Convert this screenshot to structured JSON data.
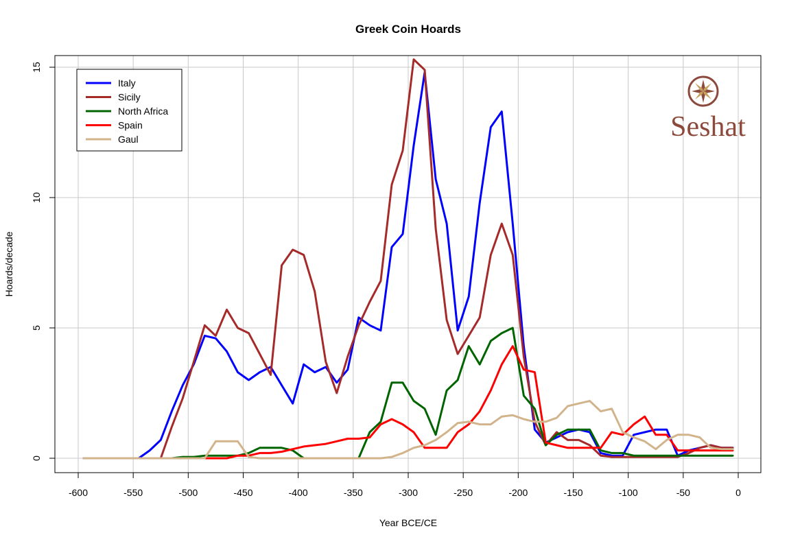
{
  "chart_data": {
    "type": "line",
    "title": "Greek Coin Hoards",
    "xlabel": "Year BCE/CE",
    "ylabel": "Hoards/decade",
    "xlim": [
      -600,
      0
    ],
    "ylim": [
      0,
      15
    ],
    "grid": true,
    "legend_position": "top-left",
    "x_ticks": [
      "-600",
      "-550",
      "-500",
      "-450",
      "-400",
      "-350",
      "-300",
      "-250",
      "-200",
      "-150",
      "-100",
      "-50",
      "0"
    ],
    "x_tick_values": [
      -600,
      -550,
      -500,
      -450,
      -400,
      -350,
      -300,
      -250,
      -200,
      -150,
      -100,
      -50,
      0
    ],
    "y_ticks": [
      "0",
      "5",
      "10",
      "15"
    ],
    "y_tick_values": [
      0,
      5,
      10,
      15
    ],
    "series": [
      {
        "name": "Italy",
        "color": "#0000ff",
        "x": [
          -595,
          -585,
          -575,
          -565,
          -555,
          -545,
          -535,
          -525,
          -515,
          -505,
          -495,
          -485,
          -475,
          -465,
          -455,
          -445,
          -435,
          -425,
          -415,
          -405,
          -395,
          -385,
          -375,
          -365,
          -355,
          -345,
          -335,
          -325,
          -315,
          -305,
          -295,
          -285,
          -275,
          -265,
          -255,
          -245,
          -235,
          -225,
          -215,
          -205,
          -195,
          -185,
          -175,
          -165,
          -155,
          -145,
          -135,
          -125,
          -115,
          -105,
          -95,
          -85,
          -75,
          -65,
          -55,
          -45,
          -35,
          -25,
          -15,
          -5
        ],
        "y": [
          0,
          0,
          0,
          0,
          0,
          0,
          0.3,
          0.7,
          1.8,
          2.8,
          3.6,
          4.7,
          4.6,
          4.1,
          3.3,
          3.0,
          3.3,
          3.5,
          2.8,
          2.1,
          3.6,
          3.3,
          3.5,
          2.9,
          3.4,
          5.4,
          5.1,
          4.9,
          8.1,
          8.6,
          12.0,
          14.8,
          10.7,
          9.0,
          4.9,
          6.2,
          9.8,
          12.7,
          13.3,
          9.0,
          4.3,
          1.1,
          0.6,
          0.8,
          1.0,
          1.1,
          1.0,
          0.2,
          0.1,
          0.1,
          0.9,
          1.0,
          1.1,
          1.1,
          0.1,
          0.3,
          0.4,
          0.5,
          0.4,
          0.4
        ]
      },
      {
        "name": "Sicily",
        "color": "#a52a2a",
        "x": [
          -525,
          -515,
          -505,
          -495,
          -485,
          -475,
          -465,
          -455,
          -445,
          -435,
          -425,
          -415,
          -405,
          -395,
          -385,
          -375,
          -365,
          -355,
          -345,
          -335,
          -325,
          -315,
          -305,
          -295,
          -285,
          -275,
          -265,
          -255,
          -245,
          -235,
          -225,
          -215,
          -205,
          -195,
          -185,
          -175,
          -165,
          -155,
          -145,
          -135,
          -125,
          -115,
          -105,
          -95,
          -85,
          -75,
          -65,
          -55,
          -45,
          -35,
          -25,
          -15,
          -5
        ],
        "y": [
          0,
          1.2,
          2.3,
          3.7,
          5.1,
          4.7,
          5.7,
          5.0,
          4.8,
          4.0,
          3.2,
          7.4,
          8.0,
          7.8,
          6.4,
          3.7,
          2.5,
          3.9,
          5.1,
          6.0,
          6.8,
          10.5,
          11.8,
          15.3,
          14.9,
          8.8,
          5.3,
          4.0,
          4.7,
          5.4,
          7.8,
          9.0,
          7.8,
          3.9,
          1.4,
          0.5,
          1.0,
          0.7,
          0.7,
          0.5,
          0.1,
          0.05,
          0.05,
          0.05,
          0.05,
          0.05,
          0.05,
          0.05,
          0.2,
          0.4,
          0.5,
          0.4,
          0.4
        ]
      },
      {
        "name": "North Africa",
        "color": "#006400",
        "x": [
          -515,
          -505,
          -495,
          -485,
          -475,
          -465,
          -455,
          -445,
          -435,
          -425,
          -415,
          -405,
          -395,
          -385,
          -375,
          -365,
          -355,
          -345,
          -335,
          -325,
          -315,
          -305,
          -295,
          -285,
          -275,
          -265,
          -255,
          -245,
          -235,
          -225,
          -215,
          -205,
          -195,
          -185,
          -175,
          -165,
          -155,
          -145,
          -135,
          -125,
          -115,
          -105,
          -95,
          -85,
          -75,
          -65,
          -55,
          -45,
          -35,
          -25,
          -15,
          -5
        ],
        "y": [
          0,
          0.05,
          0.05,
          0.1,
          0.1,
          0.1,
          0.1,
          0.2,
          0.4,
          0.4,
          0.4,
          0.3,
          0,
          0,
          0,
          0,
          0,
          0,
          1.0,
          1.4,
          2.9,
          2.9,
          2.2,
          1.9,
          0.9,
          2.6,
          3.0,
          4.3,
          3.6,
          4.5,
          4.8,
          5.0,
          2.4,
          1.9,
          0.5,
          0.9,
          1.1,
          1.1,
          1.1,
          0.3,
          0.2,
          0.2,
          0.1,
          0.1,
          0.1,
          0.1,
          0.1,
          0.1,
          0.1,
          0.1,
          0.1,
          0.1
        ]
      },
      {
        "name": "Spain",
        "color": "#ff0000",
        "x": [
          -495,
          -485,
          -475,
          -465,
          -455,
          -445,
          -435,
          -425,
          -415,
          -405,
          -395,
          -385,
          -375,
          -365,
          -355,
          -345,
          -335,
          -325,
          -315,
          -305,
          -295,
          -285,
          -275,
          -265,
          -255,
          -245,
          -235,
          -225,
          -215,
          -205,
          -195,
          -185,
          -175,
          -165,
          -155,
          -145,
          -135,
          -125,
          -115,
          -105,
          -95,
          -85,
          -75,
          -65,
          -55,
          -45,
          -35,
          -25,
          -15,
          -5
        ],
        "y": [
          0,
          0,
          0,
          0,
          0.1,
          0.1,
          0.2,
          0.2,
          0.25,
          0.35,
          0.45,
          0.5,
          0.55,
          0.65,
          0.75,
          0.75,
          0.8,
          1.3,
          1.5,
          1.3,
          1.0,
          0.4,
          0.4,
          0.4,
          1.0,
          1.3,
          1.8,
          2.6,
          3.6,
          4.3,
          3.4,
          3.3,
          0.6,
          0.5,
          0.4,
          0.4,
          0.4,
          0.4,
          1.0,
          0.9,
          1.3,
          1.6,
          0.9,
          0.9,
          0.3,
          0.3,
          0.3,
          0.3,
          0.3,
          0.3
        ]
      },
      {
        "name": "Gaul",
        "color": "#d2b48c",
        "x": [
          -595,
          -585,
          -575,
          -565,
          -555,
          -545,
          -535,
          -525,
          -515,
          -505,
          -495,
          -485,
          -475,
          -465,
          -455,
          -445,
          -435,
          -425,
          -415,
          -405,
          -395,
          -385,
          -375,
          -365,
          -355,
          -345,
          -335,
          -325,
          -315,
          -305,
          -295,
          -285,
          -275,
          -265,
          -255,
          -245,
          -235,
          -225,
          -215,
          -205,
          -195,
          -185,
          -175,
          -165,
          -155,
          -145,
          -135,
          -125,
          -115,
          -105,
          -95,
          -85,
          -75,
          -65,
          -55,
          -45,
          -35,
          -25,
          -15,
          -5
        ],
        "y": [
          0,
          0,
          0,
          0,
          0,
          0,
          0,
          0,
          0,
          0,
          0,
          0,
          0.65,
          0.65,
          0.65,
          0.05,
          0,
          0,
          0,
          0,
          0,
          0,
          0,
          0,
          0,
          0,
          0,
          0,
          0.05,
          0.2,
          0.4,
          0.5,
          0.7,
          1.0,
          1.35,
          1.4,
          1.3,
          1.3,
          1.6,
          1.65,
          1.5,
          1.4,
          1.4,
          1.55,
          2.0,
          2.1,
          2.2,
          1.8,
          1.9,
          1.0,
          0.8,
          0.65,
          0.35,
          0.7,
          0.9,
          0.9,
          0.8,
          0.4,
          0.35,
          0.35
        ]
      }
    ]
  },
  "logo": {
    "text": "Seshat"
  }
}
